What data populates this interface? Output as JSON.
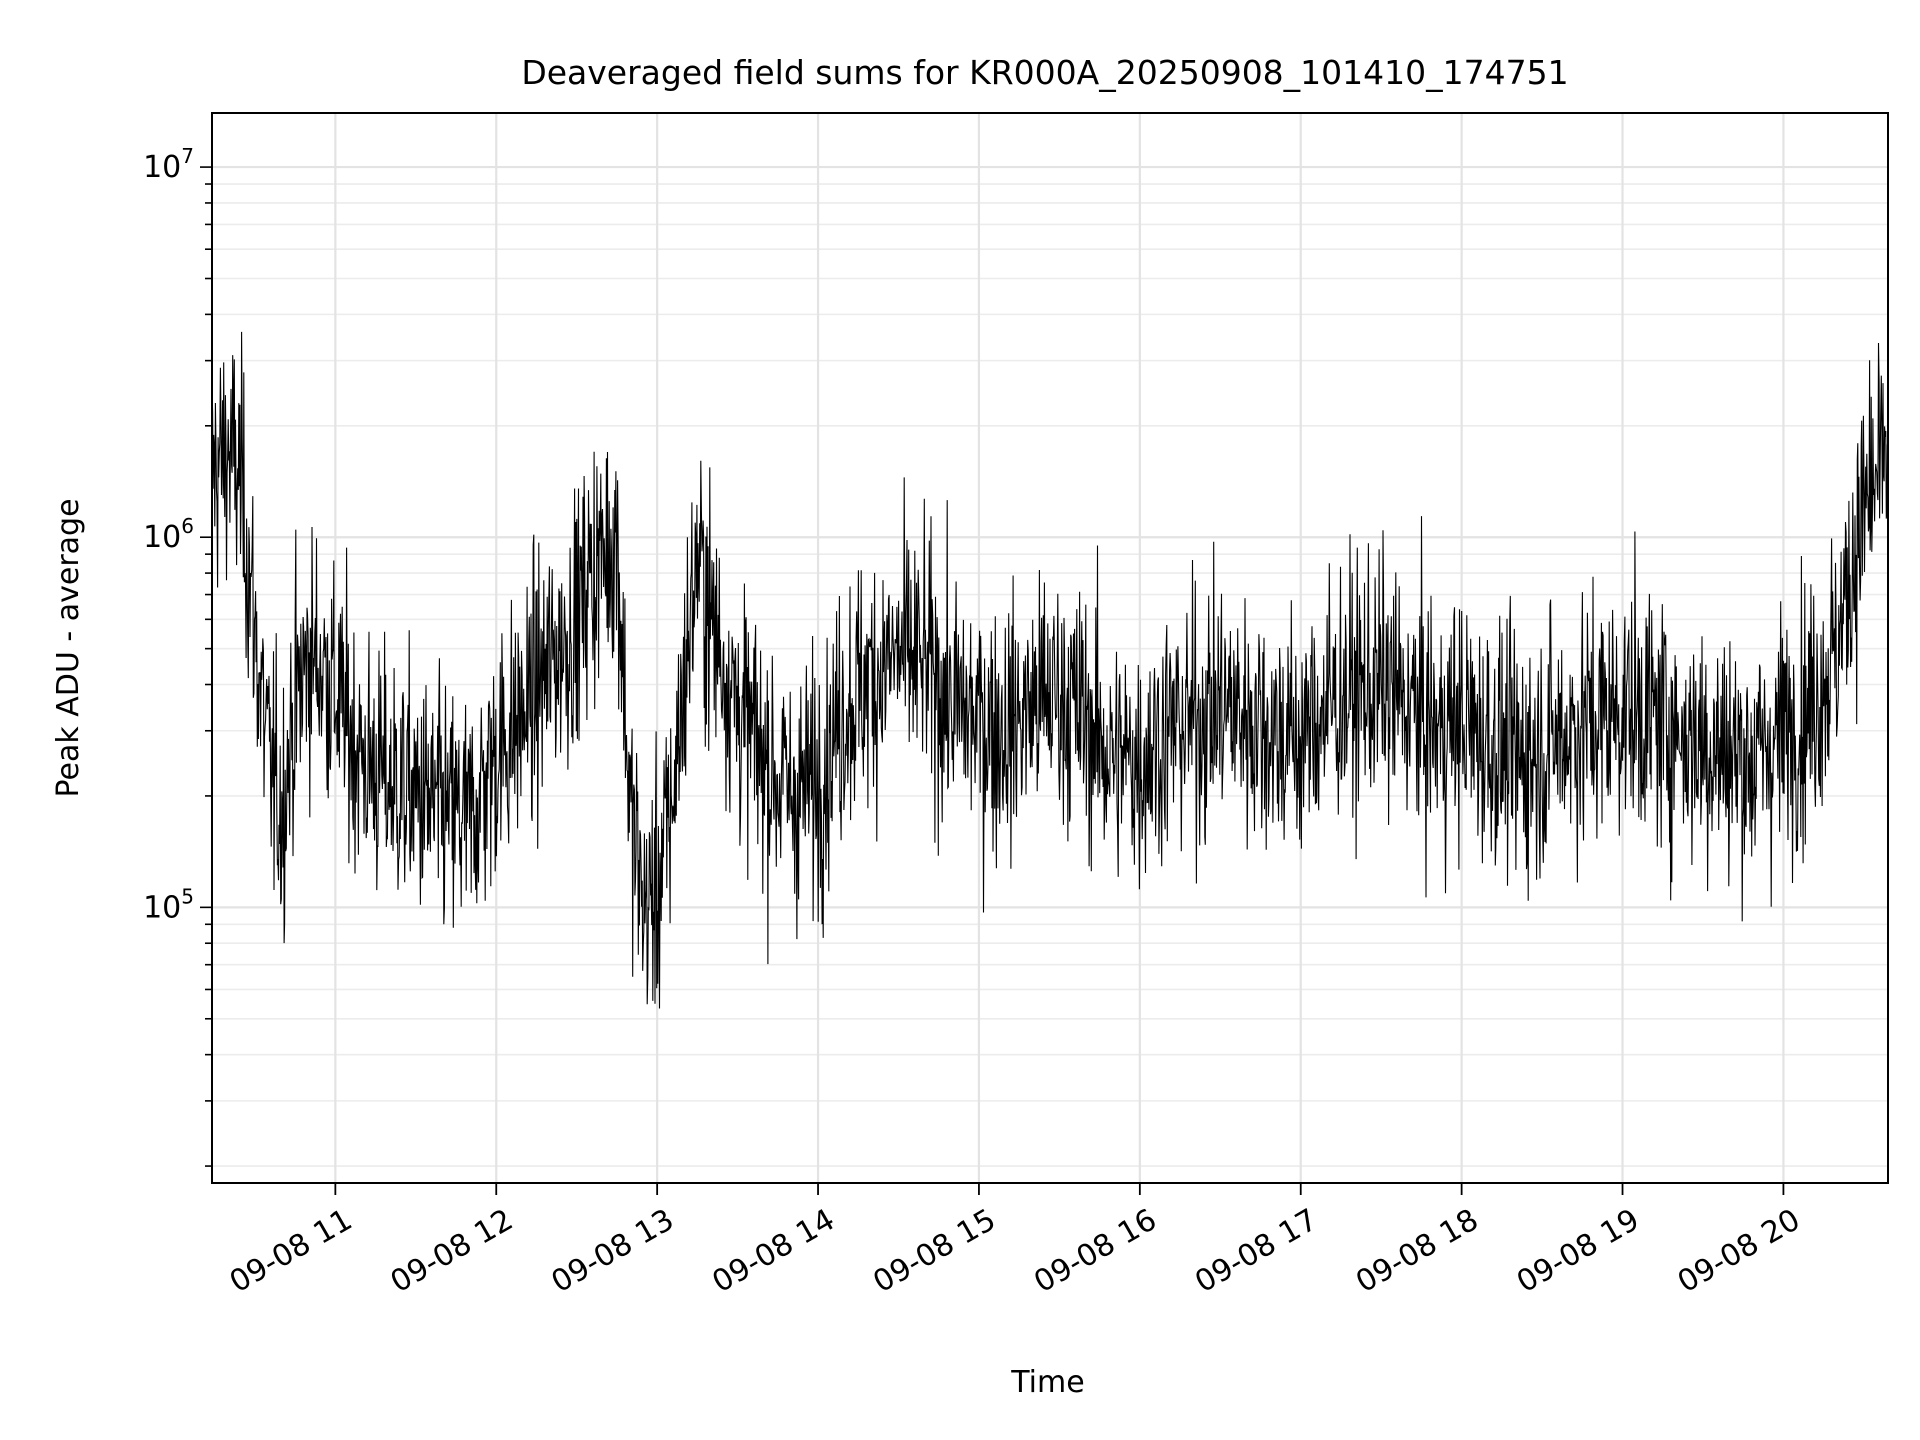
{
  "chart_data": {
    "type": "line",
    "title": "Deaveraged field sums for KR000A_20250908_101410_174751",
    "xlabel": "Time",
    "ylabel": "Peak ADU - average",
    "y_scale": "log",
    "ylim": [
      18000,
      14000000
    ],
    "xlim": [
      "09-08 10:14",
      "09-08 20:39"
    ],
    "grid": true,
    "x_ticks": [
      {
        "label": "09-08 11",
        "value": "09-08 11:00"
      },
      {
        "label": "09-08 12",
        "value": "09-08 12:00"
      },
      {
        "label": "09-08 13",
        "value": "09-08 13:00"
      },
      {
        "label": "09-08 14",
        "value": "09-08 14:00"
      },
      {
        "label": "09-08 15",
        "value": "09-08 15:00"
      },
      {
        "label": "09-08 16",
        "value": "09-08 16:00"
      },
      {
        "label": "09-08 17",
        "value": "09-08 17:00"
      },
      {
        "label": "09-08 18",
        "value": "09-08 18:00"
      },
      {
        "label": "09-08 19",
        "value": "09-08 19:00"
      },
      {
        "label": "09-08 20",
        "value": "09-08 20:00"
      }
    ],
    "y_ticks": [
      {
        "base": "10",
        "exp": "5",
        "value": 100000
      },
      {
        "base": "10",
        "exp": "6",
        "value": 1000000
      },
      {
        "base": "10",
        "exp": "7",
        "value": 10000000
      }
    ],
    "series": [
      {
        "color": "#000000",
        "x": [
          "09-08 10:14",
          "09-08 10:20",
          "09-08 10:25",
          "09-08 10:30",
          "09-08 10:35",
          "09-08 10:40",
          "09-08 10:45",
          "09-08 10:50",
          "09-08 10:55",
          "09-08 11:00",
          "09-08 11:10",
          "09-08 11:20",
          "09-08 11:30",
          "09-08 11:40",
          "09-08 11:50",
          "09-08 12:00",
          "09-08 12:10",
          "09-08 12:20",
          "09-08 12:30",
          "09-08 12:35",
          "09-08 12:40",
          "09-08 12:45",
          "09-08 12:50",
          "09-08 12:55",
          "09-08 13:00",
          "09-08 13:05",
          "09-08 13:10",
          "09-08 13:15",
          "09-08 13:20",
          "09-08 13:30",
          "09-08 13:40",
          "09-08 13:50",
          "09-08 14:00",
          "09-08 14:10",
          "09-08 14:20",
          "09-08 14:30",
          "09-08 14:40",
          "09-08 14:50",
          "09-08 15:00",
          "09-08 15:10",
          "09-08 15:20",
          "09-08 15:30",
          "09-08 15:40",
          "09-08 15:50",
          "09-08 16:00",
          "09-08 16:10",
          "09-08 16:20",
          "09-08 16:30",
          "09-08 16:40",
          "09-08 16:50",
          "09-08 17:00",
          "09-08 17:10",
          "09-08 17:20",
          "09-08 17:30",
          "09-08 17:40",
          "09-08 17:50",
          "09-08 18:00",
          "09-08 18:10",
          "09-08 18:20",
          "09-08 18:30",
          "09-08 18:40",
          "09-08 18:50",
          "09-08 19:00",
          "09-08 19:10",
          "09-08 19:20",
          "09-08 19:30",
          "09-08 19:40",
          "09-08 19:50",
          "09-08 20:00",
          "09-08 20:10",
          "09-08 20:20",
          "09-08 20:30",
          "09-08 20:39"
        ],
        "y": [
          1500000,
          1700000,
          1400000,
          550000,
          250000,
          180000,
          350000,
          480000,
          450000,
          380000,
          250000,
          220000,
          200000,
          180000,
          170000,
          260000,
          330000,
          450000,
          600000,
          800000,
          900000,
          1000000,
          180000,
          100000,
          110000,
          180000,
          400000,
          900000,
          600000,
          350000,
          250000,
          200000,
          220000,
          350000,
          420000,
          480000,
          450000,
          350000,
          320000,
          300000,
          350000,
          380000,
          320000,
          250000,
          250000,
          300000,
          320000,
          350000,
          330000,
          300000,
          280000,
          350000,
          380000,
          400000,
          350000,
          300000,
          320000,
          280000,
          250000,
          270000,
          300000,
          320000,
          350000,
          330000,
          300000,
          280000,
          260000,
          250000,
          300000,
          350000,
          500000,
          1200000,
          1600000
        ]
      }
    ]
  }
}
